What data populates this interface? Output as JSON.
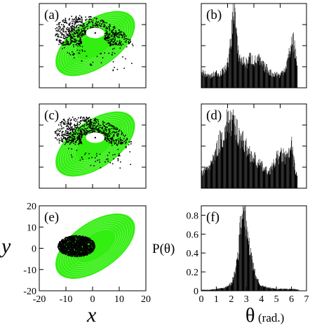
{
  "colors": {
    "orbit": "#33ee11",
    "chaos": "#000000",
    "hole": "#ffffff"
  },
  "chart_data": [
    {
      "type": "scatter",
      "panel": "(a)",
      "panel_label": "(a)",
      "xlim": [
        -20,
        20
      ],
      "ylim": [
        -20,
        20
      ],
      "ellipse": {
        "cx": 1,
        "cy": 1,
        "a": 17,
        "b": 11,
        "angle_deg": -35
      },
      "hole": {
        "cx": 1,
        "cy": 6,
        "rx": 3.5,
        "ry": 2.5
      },
      "chaos_region": "upper",
      "chaos_extent": 0.62
    },
    {
      "type": "bar",
      "panel": "(b)",
      "panel_label": "(b)",
      "xlim": [
        0,
        7
      ],
      "ylim": [
        0,
        0.9
      ],
      "bins_x": [
        0.0,
        0.2,
        0.4,
        0.6,
        0.8,
        1.0,
        1.2,
        1.4,
        1.6,
        1.8,
        2.0,
        2.1,
        2.2,
        2.3,
        2.4,
        2.6,
        2.8,
        3.0,
        3.2,
        3.4,
        3.6,
        3.8,
        4.0,
        4.2,
        4.4,
        4.6,
        4.8,
        5.0,
        5.2,
        5.4,
        5.6,
        5.8,
        6.0,
        6.1,
        6.2,
        6.4
      ],
      "values": [
        0.18,
        0.15,
        0.13,
        0.12,
        0.14,
        0.16,
        0.15,
        0.17,
        0.2,
        0.3,
        0.55,
        0.8,
        0.9,
        0.6,
        0.4,
        0.3,
        0.28,
        0.26,
        0.32,
        0.3,
        0.28,
        0.3,
        0.25,
        0.22,
        0.2,
        0.16,
        0.14,
        0.15,
        0.13,
        0.17,
        0.22,
        0.33,
        0.48,
        0.5,
        0.42,
        0.2
      ]
    },
    {
      "type": "scatter",
      "panel": "(c)",
      "panel_label": "(c)",
      "xlim": [
        -20,
        20
      ],
      "ylim": [
        -20,
        20
      ],
      "ellipse": {
        "cx": 1,
        "cy": 1,
        "a": 17,
        "b": 11,
        "angle_deg": -35
      },
      "hole": {
        "cx": 1,
        "cy": 4,
        "rx": 3.5,
        "ry": 2.5
      },
      "chaos_region": "upper",
      "chaos_extent": 0.5
    },
    {
      "type": "bar",
      "panel": "(d)",
      "panel_label": "(d)",
      "xlim": [
        0,
        7
      ],
      "ylim": [
        0,
        0.9
      ],
      "bins_x": [
        0.0,
        0.2,
        0.4,
        0.6,
        0.8,
        1.0,
        1.2,
        1.4,
        1.6,
        1.8,
        2.0,
        2.2,
        2.4,
        2.6,
        2.8,
        3.0,
        3.2,
        3.4,
        3.6,
        3.8,
        4.0,
        4.2,
        4.4,
        4.6,
        4.8,
        5.0,
        5.2,
        5.4,
        5.6,
        5.8,
        6.0,
        6.2,
        6.4
      ],
      "values": [
        0.15,
        0.18,
        0.22,
        0.25,
        0.3,
        0.4,
        0.5,
        0.55,
        0.62,
        0.75,
        0.7,
        0.65,
        0.6,
        0.55,
        0.5,
        0.42,
        0.38,
        0.34,
        0.3,
        0.26,
        0.24,
        0.2,
        0.18,
        0.2,
        0.25,
        0.32,
        0.34,
        0.36,
        0.32,
        0.35,
        0.45,
        0.22,
        0.1
      ]
    },
    {
      "type": "scatter",
      "panel": "(e)",
      "panel_label": "(e)",
      "xlim": [
        -20,
        20
      ],
      "ylim": [
        -20,
        20
      ],
      "xticks": [
        -20,
        -10,
        0,
        10,
        20
      ],
      "yticks": [
        -20,
        -10,
        0,
        10,
        20
      ],
      "xlabel": "x",
      "ylabel": "y",
      "ellipse": {
        "cx": 1,
        "cy": 1,
        "a": 17,
        "b": 11,
        "angle_deg": -35
      },
      "hole": null,
      "chaos_blob": {
        "cx": -6,
        "cy": 1,
        "rx": 7,
        "ry": 5
      }
    },
    {
      "type": "bar",
      "panel": "(f)",
      "panel_label": "(f)",
      "xlim": [
        0,
        7
      ],
      "ylim": [
        0,
        0.9
      ],
      "xticks": [
        0,
        1,
        2,
        3,
        4,
        5,
        6,
        7
      ],
      "yticks": [
        0,
        0.2,
        0.4,
        0.6,
        0.8
      ],
      "xlabel_symbol": "θ",
      "xlabel_unit": "(rad.)",
      "ylabel": "P(θ)",
      "bins_x": [
        0.0,
        0.5,
        1.0,
        1.5,
        2.0,
        2.2,
        2.4,
        2.5,
        2.6,
        2.7,
        2.8,
        2.9,
        3.0,
        3.1,
        3.2,
        3.3,
        3.4,
        3.6,
        3.8,
        4.0,
        4.5,
        5.0,
        5.5,
        6.0,
        6.5
      ],
      "values": [
        0.01,
        0.01,
        0.02,
        0.03,
        0.08,
        0.18,
        0.35,
        0.5,
        0.7,
        0.82,
        0.86,
        0.78,
        0.65,
        0.55,
        0.45,
        0.38,
        0.28,
        0.16,
        0.1,
        0.05,
        0.03,
        0.02,
        0.02,
        0.02,
        0.01
      ]
    }
  ]
}
